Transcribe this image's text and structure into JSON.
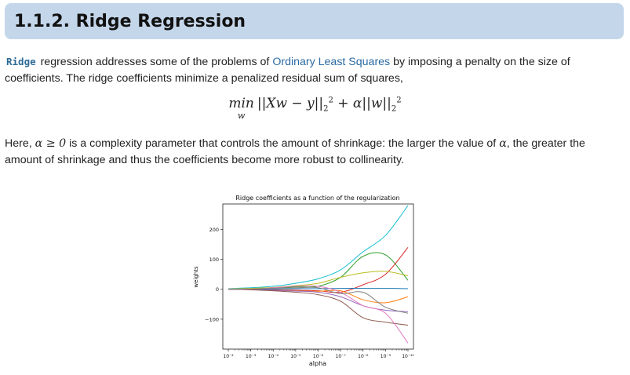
{
  "header": {
    "title": "1.1.2. Ridge Regression"
  },
  "intro": {
    "code": "Ridge",
    "text_a": " regression addresses some of the problems of ",
    "link": "Ordinary Least Squares",
    "text_b": " by imposing a penalty on the size of coefficients. The ridge coefficients minimize a penalized residual sum of squares,"
  },
  "formula": {
    "min": "min",
    "sub": "w",
    "body_1": "||Xw − y||",
    "s1": "2",
    "p1": "2",
    "plus": " + α||w||",
    "s2": "2",
    "p2": "2"
  },
  "explanation": {
    "here": "Here, ",
    "cond": "α ≥ 0",
    "text_a": " is a complexity parameter that controls the amount of shrinkage: the larger the value of ",
    "alpha": "α",
    "text_b": ", the greater the amount of shrinkage and thus the coefficients become more robust to collinearity."
  },
  "chart_data": {
    "type": "line",
    "title": "Ridge coefficients as a function of the regularization",
    "xlabel": "alpha",
    "ylabel": "weights",
    "xscale": "log",
    "x_direction": "decreasing",
    "xlim": [
      0.01,
      1e-10
    ],
    "ylim": [
      -200,
      285
    ],
    "x_ticks": [
      "10⁻²",
      "10⁻³",
      "10⁻⁴",
      "10⁻⁵",
      "10⁻⁶",
      "10⁻⁷",
      "10⁻⁸",
      "10⁻⁹",
      "10⁻¹⁰"
    ],
    "y_ticks": [
      "200",
      "100",
      "0",
      "−100"
    ],
    "y_tick_values": [
      200,
      100,
      0,
      -100
    ],
    "x": [
      0.01,
      0.001,
      0.0001,
      1e-05,
      1e-06,
      1e-07,
      1e-08,
      1e-09,
      1e-10
    ],
    "series": [
      {
        "color": "#17becf",
        "values": [
          2,
          5,
          10,
          20,
          35,
          65,
          125,
          180,
          280
        ]
      },
      {
        "color": "#2ca02c",
        "values": [
          1,
          2,
          4,
          8,
          10,
          40,
          110,
          115,
          30
        ]
      },
      {
        "color": "#d62728",
        "values": [
          0,
          -1,
          -2,
          -3,
          -5,
          -10,
          15,
          50,
          140
        ]
      },
      {
        "color": "#bcbd22",
        "values": [
          1,
          3,
          6,
          12,
          20,
          40,
          55,
          60,
          45
        ]
      },
      {
        "color": "#1f77b4",
        "values": [
          0,
          0,
          1,
          2,
          2,
          3,
          3,
          3,
          2
        ]
      },
      {
        "color": "#ff7f0e",
        "values": [
          0,
          -1,
          -3,
          -5,
          -7,
          -5,
          -35,
          -45,
          -25
        ]
      },
      {
        "color": "#9467bd",
        "values": [
          0,
          -1,
          -3,
          -6,
          -10,
          -25,
          -55,
          -70,
          -75
        ]
      },
      {
        "color": "#8c564b",
        "values": [
          0,
          -2,
          -5,
          -10,
          -18,
          -40,
          -95,
          -110,
          -120
        ]
      },
      {
        "color": "#e377c2",
        "values": [
          0,
          0,
          5,
          10,
          10,
          -10,
          -55,
          -80,
          -180
        ]
      },
      {
        "color": "#7f7f7f",
        "values": [
          0,
          1,
          3,
          5,
          5,
          -15,
          -10,
          -60,
          -80
        ]
      }
    ]
  }
}
